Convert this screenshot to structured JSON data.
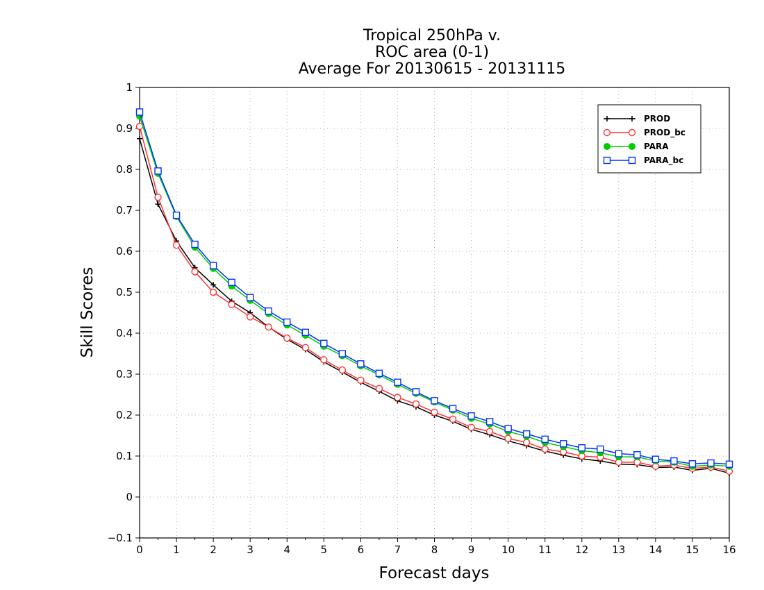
{
  "chart_data": {
    "type": "line",
    "title_lines": [
      "Tropical 250hPa v.",
      "ROC area (0-1)",
      "Average For 20130615 - 20131115"
    ],
    "xlabel": "Forecast days",
    "ylabel": "Skill Scores",
    "xlim": [
      0,
      16
    ],
    "ylim": [
      -0.1,
      1
    ],
    "xticks": [
      "0",
      "1",
      "2",
      "3",
      "4",
      "5",
      "6",
      "7",
      "8",
      "9",
      "10",
      "11",
      "12",
      "13",
      "14",
      "15",
      "16"
    ],
    "yticks": [
      "-0.1",
      "0",
      "0.1",
      "0.2",
      "0.3",
      "0.4",
      "0.5",
      "0.6",
      "0.7",
      "0.8",
      "0.9",
      "1"
    ],
    "grid": true,
    "legend_position": "top-right",
    "x": [
      0,
      0.5,
      1,
      1.5,
      2,
      2.5,
      3,
      3.5,
      4,
      4.5,
      5,
      5.5,
      6,
      6.5,
      7,
      7.5,
      8,
      8.5,
      9,
      9.5,
      10,
      10.5,
      11,
      11.5,
      12,
      12.5,
      13,
      13.5,
      14,
      14.5,
      15,
      15.5,
      16
    ],
    "series": [
      {
        "name": "PROD",
        "color": "#000000",
        "marker": "plus",
        "values": [
          0.875,
          0.715,
          0.625,
          0.56,
          0.518,
          0.478,
          0.45,
          0.415,
          0.385,
          0.36,
          0.33,
          0.305,
          0.28,
          0.258,
          0.235,
          0.22,
          0.2,
          0.185,
          0.165,
          0.152,
          0.137,
          0.125,
          0.112,
          0.102,
          0.093,
          0.088,
          0.08,
          0.079,
          0.072,
          0.073,
          0.065,
          0.07,
          0.058
        ]
      },
      {
        "name": "PROD_bc",
        "color": "#ff3333",
        "marker": "circle",
        "values": [
          0.905,
          0.732,
          0.615,
          0.55,
          0.5,
          0.47,
          0.44,
          0.415,
          0.388,
          0.365,
          0.335,
          0.31,
          0.285,
          0.265,
          0.243,
          0.227,
          0.207,
          0.19,
          0.17,
          0.16,
          0.143,
          0.133,
          0.117,
          0.11,
          0.1,
          0.097,
          0.085,
          0.085,
          0.075,
          0.078,
          0.07,
          0.073,
          0.063
        ]
      },
      {
        "name": "PARA",
        "color": "#00cc00",
        "marker": "dot",
        "values": [
          0.93,
          0.79,
          0.685,
          0.61,
          0.558,
          0.515,
          0.48,
          0.448,
          0.42,
          0.395,
          0.368,
          0.345,
          0.32,
          0.298,
          0.275,
          0.253,
          0.232,
          0.212,
          0.192,
          0.178,
          0.16,
          0.148,
          0.133,
          0.123,
          0.113,
          0.108,
          0.098,
          0.098,
          0.088,
          0.085,
          0.075,
          0.078,
          0.075
        ]
      },
      {
        "name": "PARA_bc",
        "color": "#0033ff",
        "marker": "square",
        "values": [
          0.94,
          0.796,
          0.688,
          0.617,
          0.565,
          0.524,
          0.487,
          0.454,
          0.427,
          0.402,
          0.375,
          0.35,
          0.325,
          0.302,
          0.28,
          0.257,
          0.235,
          0.216,
          0.198,
          0.184,
          0.167,
          0.154,
          0.141,
          0.13,
          0.12,
          0.117,
          0.106,
          0.103,
          0.092,
          0.088,
          0.081,
          0.083,
          0.08
        ]
      }
    ]
  }
}
